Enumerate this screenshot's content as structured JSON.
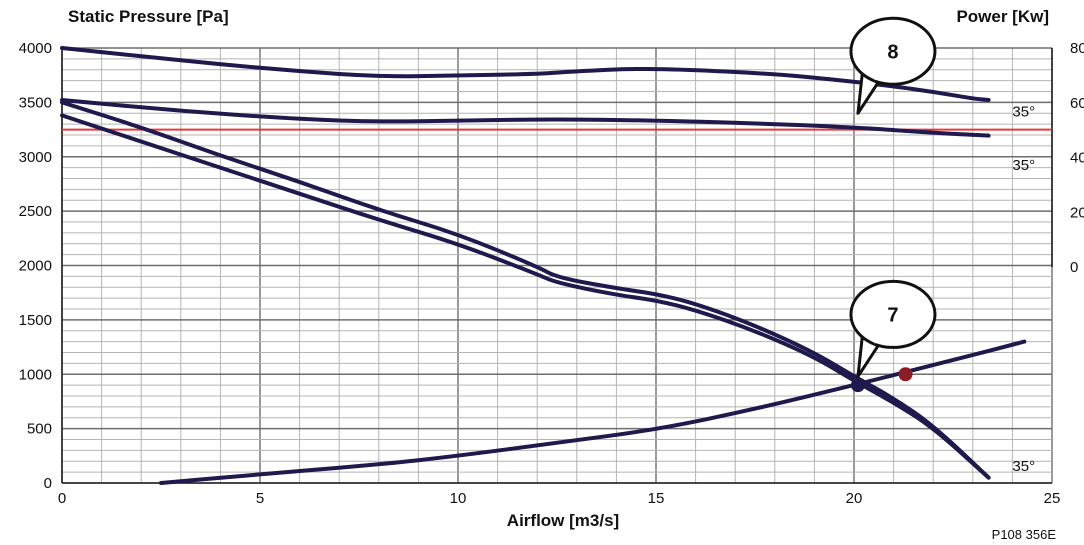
{
  "chart_data": {
    "type": "line",
    "title": "",
    "xlabel": "Airflow [m3/s]",
    "ylabel": "Static Pressure [Pa]",
    "y2label": "Power [Kw]",
    "xlim": [
      0,
      25
    ],
    "ylim": [
      0,
      4000
    ],
    "y2lim": [
      0,
      80
    ],
    "x_ticks": [
      0,
      5,
      10,
      15,
      20,
      25
    ],
    "y_ticks": [
      0,
      500,
      1000,
      1500,
      2000,
      2500,
      3000,
      3500,
      4000
    ],
    "y2_ticks": [
      0,
      20,
      40,
      60,
      80
    ],
    "grid": true,
    "series": [
      {
        "axis": "left",
        "color": "#1f1a4d",
        "points": [
          [
            0,
            3500
          ],
          [
            2,
            3270
          ],
          [
            4,
            3010
          ],
          [
            6,
            2770
          ],
          [
            8,
            2510
          ],
          [
            10,
            2290
          ],
          [
            12,
            1990
          ],
          [
            12.5,
            1890
          ],
          [
            14,
            1790
          ],
          [
            15,
            1740
          ],
          [
            16,
            1650
          ],
          [
            17.5,
            1450
          ],
          [
            19,
            1200
          ],
          [
            20,
            980
          ],
          [
            21,
            780
          ],
          [
            22,
            530
          ],
          [
            23.4,
            50
          ]
        ]
      },
      {
        "axis": "left",
        "color": "#1f1a4d",
        "points": [
          [
            0,
            3380
          ],
          [
            2,
            3140
          ],
          [
            4,
            2900
          ],
          [
            6,
            2660
          ],
          [
            8,
            2420
          ],
          [
            10,
            2200
          ],
          [
            12,
            1920
          ],
          [
            12.5,
            1840
          ],
          [
            14,
            1730
          ],
          [
            15,
            1680
          ],
          [
            16,
            1590
          ],
          [
            17.5,
            1400
          ],
          [
            19,
            1160
          ],
          [
            20,
            940
          ],
          [
            21,
            740
          ],
          [
            22,
            510
          ],
          [
            23.4,
            50
          ]
        ]
      },
      {
        "axis": "left",
        "color": "#1f1a4d",
        "points": [
          [
            2.5,
            0
          ],
          [
            5,
            80
          ],
          [
            8,
            170
          ],
          [
            10,
            250
          ],
          [
            12.5,
            370
          ],
          [
            15,
            490
          ],
          [
            17.5,
            680
          ],
          [
            20,
            900
          ],
          [
            22.5,
            1130
          ],
          [
            24.3,
            1300
          ]
        ]
      },
      {
        "axis": "right",
        "color": "#1f1a4d",
        "points": [
          [
            0,
            80
          ],
          [
            2,
            77
          ],
          [
            4,
            74
          ],
          [
            6,
            71.5
          ],
          [
            8,
            69.5
          ],
          [
            10,
            70
          ],
          [
            12,
            70.5
          ],
          [
            13,
            71.5
          ],
          [
            14.5,
            72.5
          ],
          [
            16,
            72
          ],
          [
            18,
            70.5
          ],
          [
            19.5,
            68.5
          ],
          [
            21,
            66
          ],
          [
            22,
            64
          ],
          [
            23,
            61.5
          ],
          [
            23.4,
            61
          ]
        ]
      },
      {
        "axis": "right",
        "color": "#1f1a4d",
        "points": [
          [
            0,
            61
          ],
          [
            3,
            57
          ],
          [
            6,
            54
          ],
          [
            8,
            53
          ],
          [
            10,
            53.5
          ],
          [
            12.5,
            54
          ],
          [
            15,
            53.5
          ],
          [
            17.5,
            52.5
          ],
          [
            20,
            51
          ],
          [
            22,
            49
          ],
          [
            23.4,
            48
          ]
        ]
      }
    ],
    "reference_line": {
      "axis": "left",
      "value": 3250,
      "color": "#e33b3b"
    },
    "markers": [
      {
        "x": 20.1,
        "y": 900,
        "color": "#1f1a4d"
      },
      {
        "x": 21.3,
        "y": 1000,
        "color": "#8b1c28"
      }
    ],
    "annotations": [
      {
        "text": "35°",
        "x": 24.0,
        "y": 3370
      },
      {
        "text": "35°",
        "x": 24.0,
        "y": 2880
      },
      {
        "text": "35°",
        "x": 24.0,
        "y": 110
      }
    ],
    "callouts": [
      {
        "label": "8",
        "x": 20.1,
        "y": 3400
      },
      {
        "label": "7",
        "x": 20.1,
        "y": 980
      }
    ],
    "ref_code": "P108 356E"
  }
}
